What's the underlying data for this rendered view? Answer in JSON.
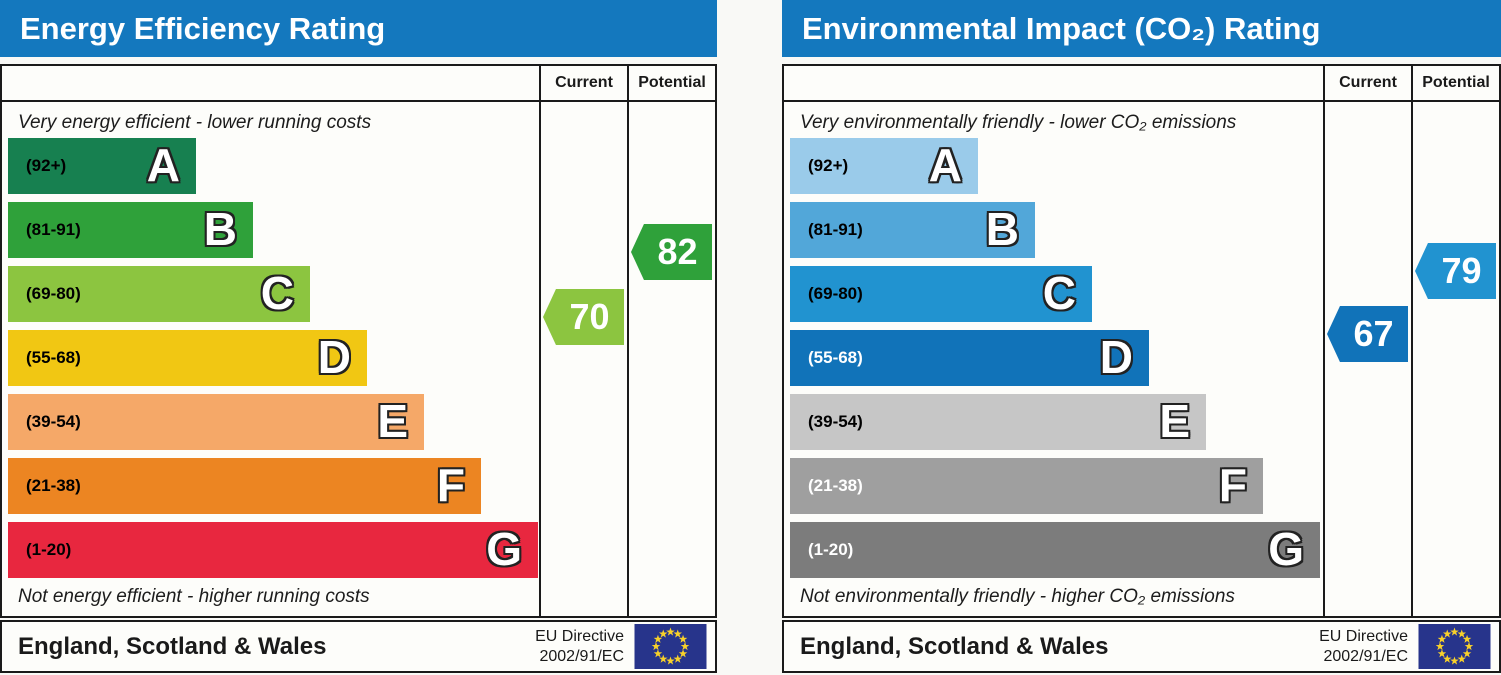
{
  "chart_data": [
    {
      "type": "bar",
      "title": "Energy Efficiency Rating",
      "header_color": "#1478be",
      "columns": {
        "current_label": "Current",
        "potential_label": "Potential"
      },
      "caption_top": "Very energy efficient - lower running costs",
      "caption_bottom": "Not energy efficient - higher running costs",
      "scale_min": 1,
      "scale_max": 100,
      "bands": [
        {
          "letter": "A",
          "range_label": "(92+)",
          "min": 92,
          "max": 100,
          "color": "#178050",
          "label_color": "#000000"
        },
        {
          "letter": "B",
          "range_label": "(81-91)",
          "min": 81,
          "max": 91,
          "color": "#2fa13a",
          "label_color": "#000000"
        },
        {
          "letter": "C",
          "range_label": "(69-80)",
          "min": 69,
          "max": 80,
          "color": "#8cc540",
          "label_color": "#000000"
        },
        {
          "letter": "D",
          "range_label": "(55-68)",
          "min": 55,
          "max": 68,
          "color": "#f1c713",
          "label_color": "#000000"
        },
        {
          "letter": "E",
          "range_label": "(39-54)",
          "min": 39,
          "max": 54,
          "color": "#f5a868",
          "label_color": "#000000"
        },
        {
          "letter": "F",
          "range_label": "(21-38)",
          "min": 21,
          "max": 38,
          "color": "#ec8522",
          "label_color": "#000000"
        },
        {
          "letter": "G",
          "range_label": "(1-20)",
          "min": 1,
          "max": 20,
          "color": "#e8273f",
          "label_color": "#000000"
        }
      ],
      "current": {
        "value": 70,
        "color": "#8cc540"
      },
      "potential": {
        "value": 82,
        "color": "#2fa13a"
      },
      "footer": {
        "region_label": "England, Scotland & Wales",
        "directive_line1": "EU Directive",
        "directive_line2": "2002/91/EC"
      },
      "flag": {
        "background": "#27348b",
        "star_color": "#f8d12a",
        "star_count": 12
      }
    },
    {
      "type": "bar",
      "title": "Environmental Impact (CO₂) Rating",
      "header_color": "#1478be",
      "columns": {
        "current_label": "Current",
        "potential_label": "Potential"
      },
      "caption_top": "Very environmentally friendly - lower CO₂ emissions",
      "caption_bottom": "Not environmentally friendly - higher CO₂ emissions",
      "scale_min": 1,
      "scale_max": 100,
      "bands": [
        {
          "letter": "A",
          "range_label": "(92+)",
          "min": 92,
          "max": 100,
          "color": "#9acbea",
          "label_color": "#000000"
        },
        {
          "letter": "B",
          "range_label": "(81-91)",
          "min": 81,
          "max": 91,
          "color": "#52a7d9",
          "label_color": "#000000"
        },
        {
          "letter": "C",
          "range_label": "(69-80)",
          "min": 69,
          "max": 80,
          "color": "#2193d0",
          "label_color": "#000000"
        },
        {
          "letter": "D",
          "range_label": "(55-68)",
          "min": 55,
          "max": 68,
          "color": "#1173b9",
          "label_color": "#ffffff"
        },
        {
          "letter": "E",
          "range_label": "(39-54)",
          "min": 39,
          "max": 54,
          "color": "#c6c6c6",
          "label_color": "#000000"
        },
        {
          "letter": "F",
          "range_label": "(21-38)",
          "min": 21,
          "max": 38,
          "color": "#9f9f9f",
          "label_color": "#ffffff"
        },
        {
          "letter": "G",
          "range_label": "(1-20)",
          "min": 1,
          "max": 20,
          "color": "#7c7c7c",
          "label_color": "#ffffff"
        }
      ],
      "current": {
        "value": 67,
        "color": "#1173b9"
      },
      "potential": {
        "value": 79,
        "color": "#2193d0"
      },
      "footer": {
        "region_label": "England, Scotland & Wales",
        "directive_line1": "EU Directive",
        "directive_line2": "2002/91/EC"
      },
      "flag": {
        "background": "#27348b",
        "star_color": "#f8d12a",
        "star_count": 12
      }
    }
  ]
}
